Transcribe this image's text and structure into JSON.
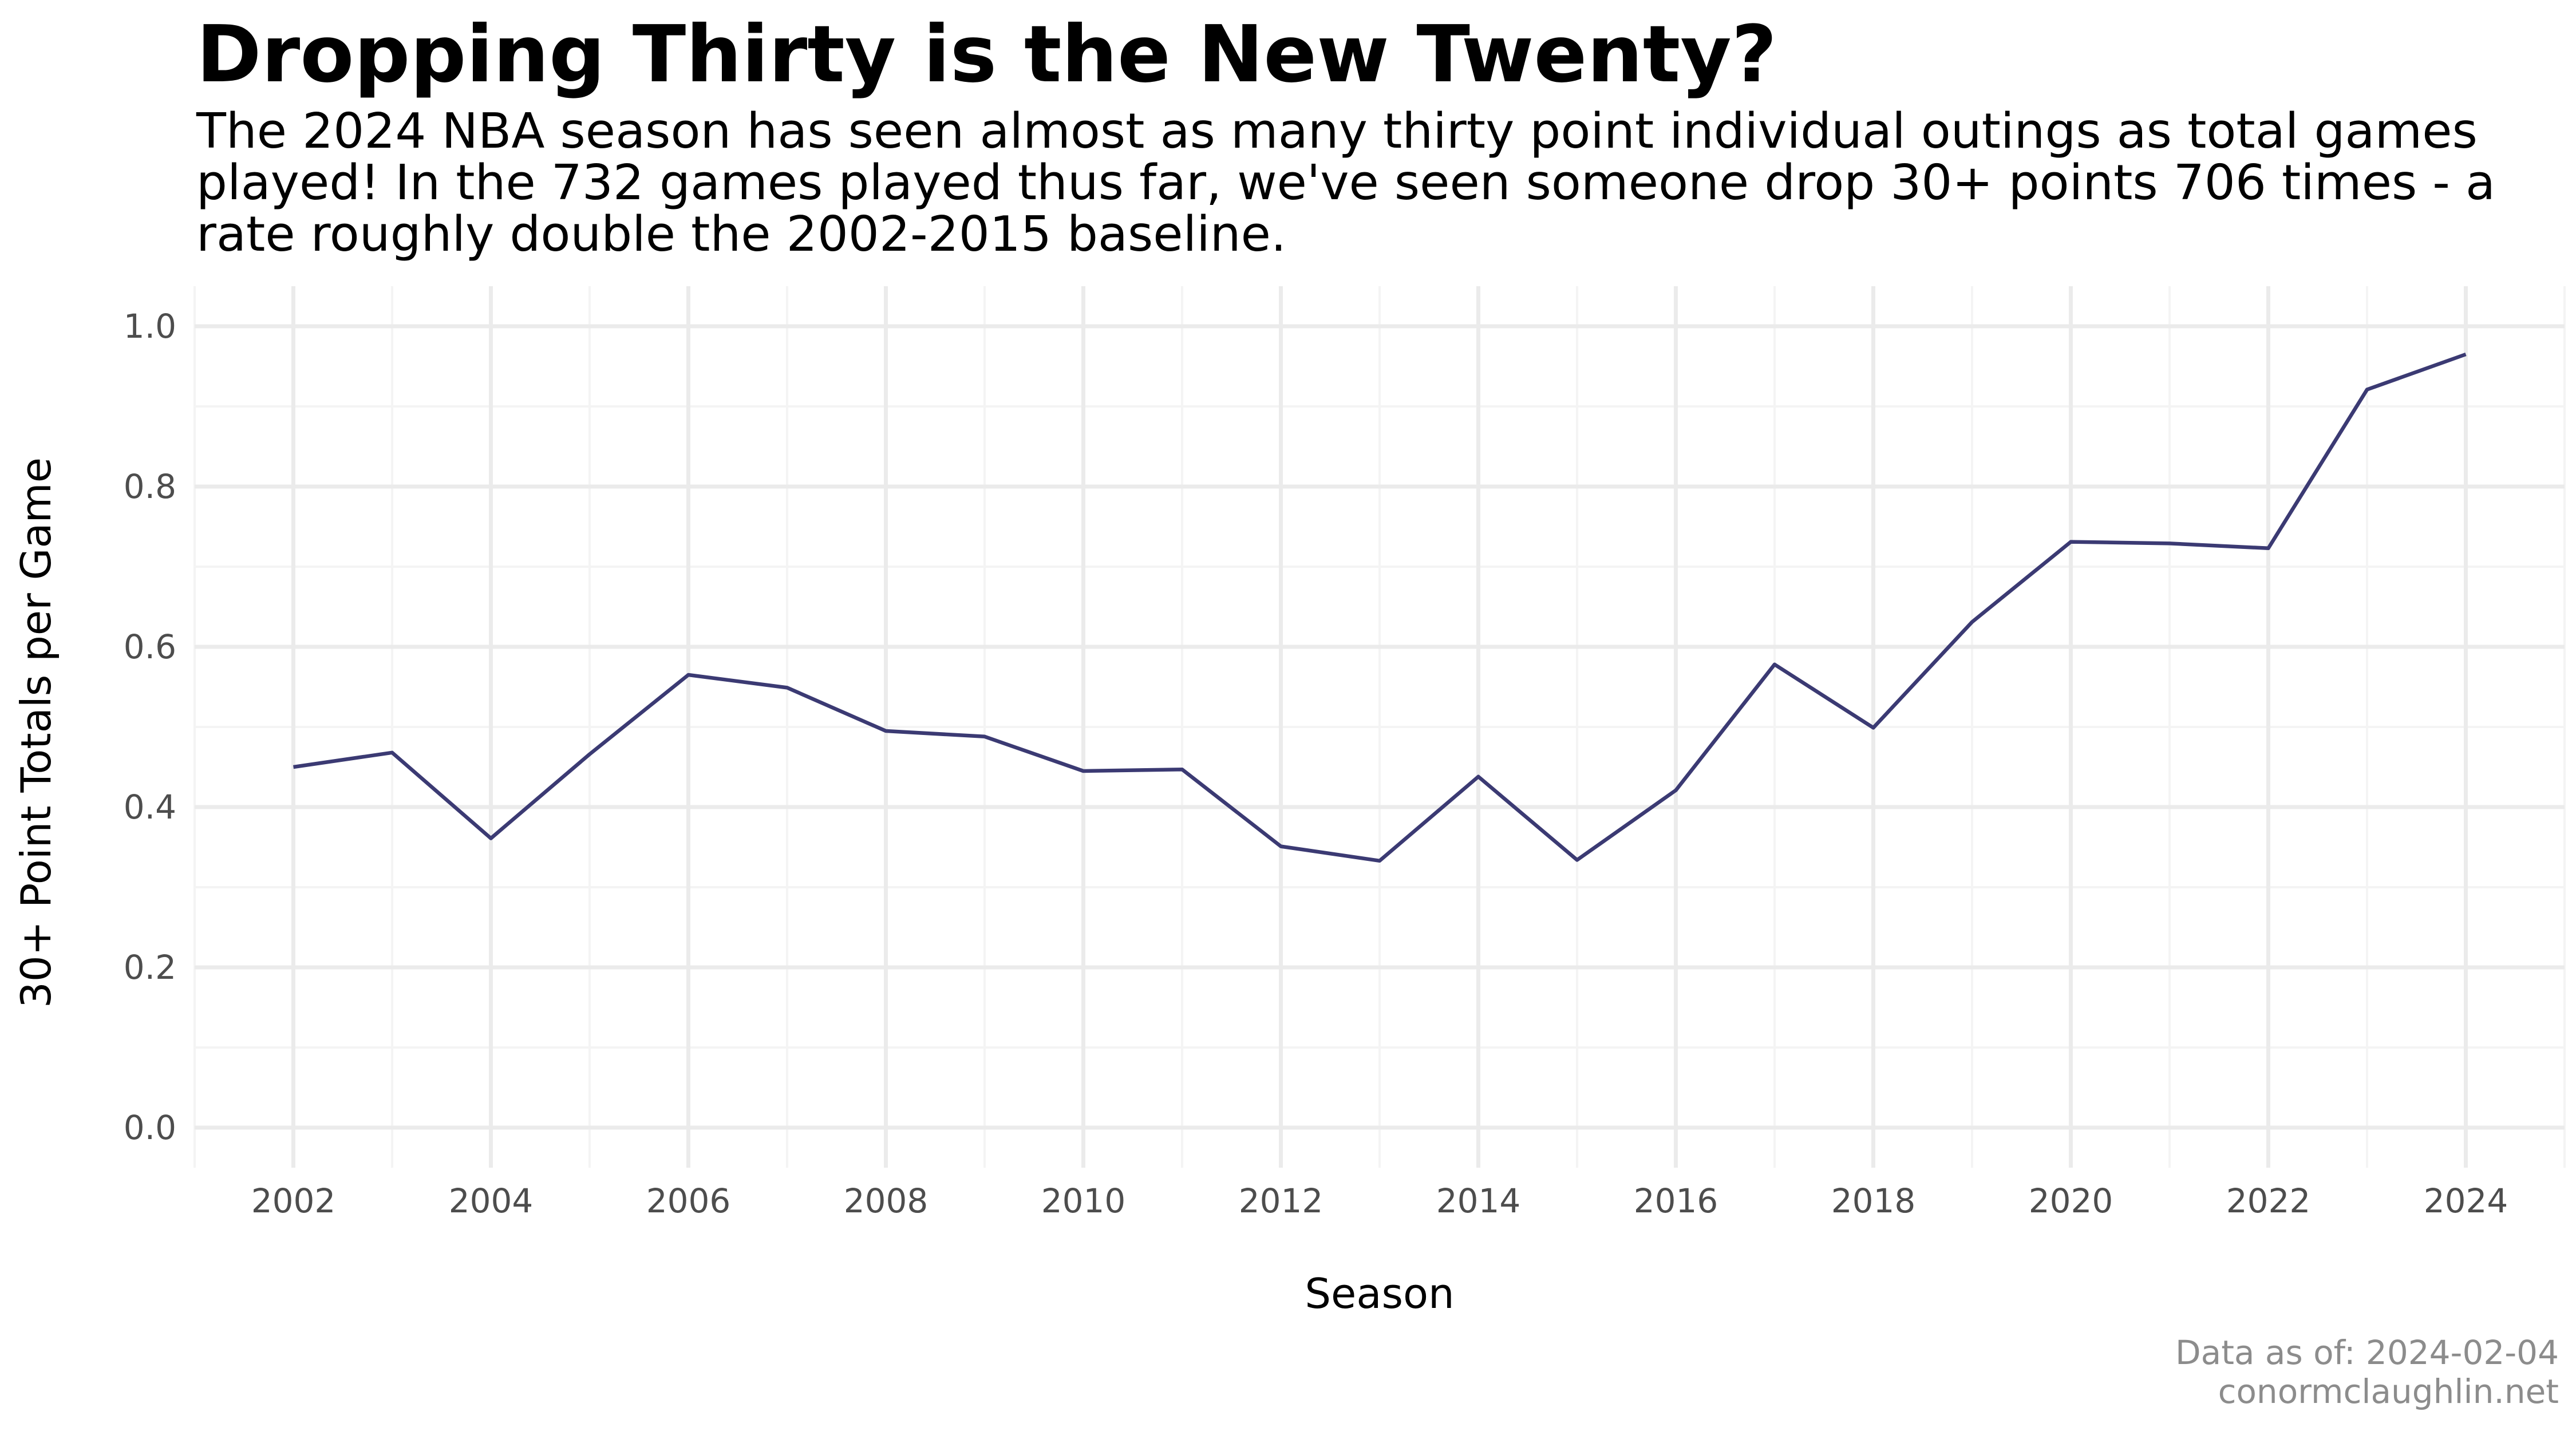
{
  "title": "Dropping Thirty is the New Twenty?",
  "subtitle": "The 2024 NBA season has seen almost as many thirty point individual outings as total games played! In the 732 games played thus far, we've seen someone drop 30+ points 706 times - a rate roughly double the 2002-2015 baseline.",
  "caption": {
    "line1": "Data as of: 2024-02-04",
    "line2": "conormclaughlin.net"
  },
  "colors": {
    "line": "#3b3a73",
    "grid_major": "#ebebeb",
    "grid_minor": "#f4f4f4",
    "tick_text": "#4d4d4d",
    "caption_text": "#8c8c8c"
  },
  "chart_data": {
    "type": "line",
    "xlabel": "Season",
    "ylabel": "30+ Point Totals per Game",
    "xlim": [
      2001,
      2025
    ],
    "ylim": [
      -0.05,
      1.05
    ],
    "x_ticks": [
      2002,
      2004,
      2006,
      2008,
      2010,
      2012,
      2014,
      2016,
      2018,
      2020,
      2022,
      2024
    ],
    "x_tick_labels": [
      "2002",
      "2004",
      "2006",
      "2008",
      "2010",
      "2012",
      "2014",
      "2016",
      "2018",
      "2020",
      "2022",
      "2024"
    ],
    "y_ticks": [
      0.0,
      0.2,
      0.4,
      0.6,
      0.8,
      1.0
    ],
    "y_tick_labels": [
      "0.0",
      "0.2",
      "0.4",
      "0.6",
      "0.8",
      "1.0"
    ],
    "grid": true,
    "legend": "none",
    "x": [
      2002,
      2003,
      2004,
      2005,
      2006,
      2007,
      2008,
      2009,
      2010,
      2011,
      2012,
      2013,
      2014,
      2015,
      2016,
      2017,
      2018,
      2019,
      2020,
      2021,
      2022,
      2023,
      2024
    ],
    "y": [
      0.45,
      0.468,
      0.361,
      0.466,
      0.565,
      0.549,
      0.495,
      0.488,
      0.445,
      0.447,
      0.351,
      0.333,
      0.438,
      0.334,
      0.421,
      0.578,
      0.499,
      0.631,
      0.731,
      0.729,
      0.723,
      0.921,
      0.965
    ]
  }
}
